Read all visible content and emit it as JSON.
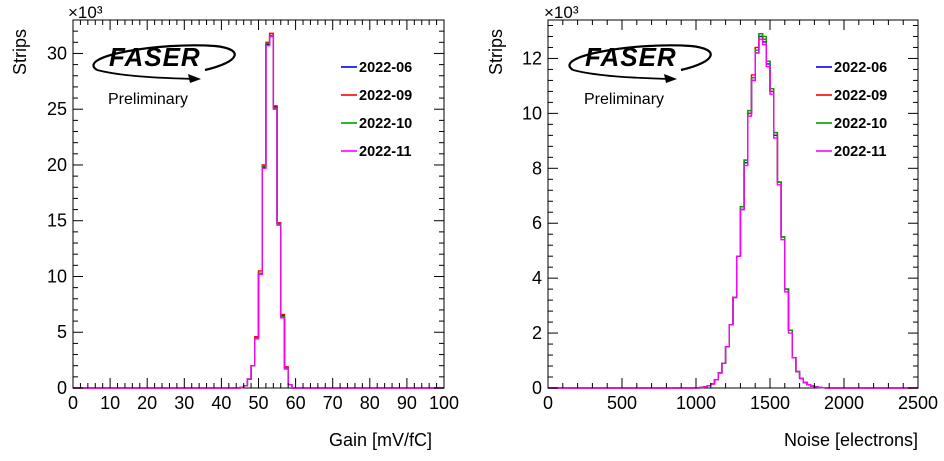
{
  "logo": {
    "text": "FASER",
    "subtitle": "Preliminary"
  },
  "chart_data": [
    {
      "type": "histogram",
      "xlabel": "Gain [mV/fC]",
      "ylabel": "Strips",
      "y_multiplier_label": "×10³",
      "xlim": [
        0,
        100
      ],
      "ylim": [
        0,
        33
      ],
      "x_ticks": [
        "0",
        "10",
        "20",
        "30",
        "40",
        "50",
        "60",
        "70",
        "80",
        "90",
        "100"
      ],
      "y_ticks": [
        "0",
        "5",
        "10",
        "15",
        "20",
        "25",
        "30"
      ],
      "legend_position": "top-right",
      "bin_width": 1,
      "bins_x": [
        44,
        45,
        46,
        47,
        48,
        49,
        50,
        51,
        52,
        53,
        54,
        55,
        56,
        57,
        58,
        59
      ],
      "series": [
        {
          "name": "2022-06",
          "color": "#0000ff",
          "values": [
            0.0,
            0.05,
            0.2,
            0.8,
            2.0,
            4.5,
            10.3,
            19.8,
            30.8,
            31.6,
            25.2,
            14.8,
            6.5,
            1.8,
            0.3,
            0.0
          ]
        },
        {
          "name": "2022-09",
          "color": "#ff0000",
          "values": [
            0.0,
            0.05,
            0.2,
            0.8,
            2.0,
            4.6,
            10.5,
            20.0,
            31.0,
            31.8,
            25.3,
            14.8,
            6.6,
            1.9,
            0.3,
            0.0
          ]
        },
        {
          "name": "2022-10",
          "color": "#00a000",
          "values": [
            0.0,
            0.05,
            0.2,
            0.8,
            2.0,
            4.5,
            10.3,
            19.9,
            30.9,
            31.6,
            25.1,
            14.7,
            6.4,
            1.8,
            0.3,
            0.0
          ]
        },
        {
          "name": "2022-11",
          "color": "#ff00ff",
          "values": [
            0.0,
            0.05,
            0.2,
            0.8,
            2.0,
            4.4,
            10.2,
            19.7,
            30.7,
            31.5,
            25.0,
            14.6,
            6.3,
            1.7,
            0.3,
            0.0
          ]
        }
      ]
    },
    {
      "type": "histogram",
      "xlabel": "Noise [electrons]",
      "ylabel": "Strips",
      "y_multiplier_label": "×10³",
      "xlim": [
        0,
        2500
      ],
      "ylim": [
        0,
        13.4
      ],
      "x_ticks": [
        "0",
        "500",
        "1000",
        "1500",
        "2000",
        "2500"
      ],
      "y_ticks": [
        "0",
        "2",
        "4",
        "6",
        "8",
        "10",
        "12"
      ],
      "legend_position": "top-right",
      "bin_width": 25,
      "bins_x": [
        1000,
        1025,
        1050,
        1075,
        1100,
        1125,
        1150,
        1175,
        1200,
        1225,
        1250,
        1275,
        1300,
        1325,
        1350,
        1375,
        1400,
        1425,
        1450,
        1475,
        1500,
        1525,
        1550,
        1575,
        1600,
        1625,
        1650,
        1675,
        1700,
        1725,
        1750,
        1775,
        1800,
        1825,
        1850,
        1875,
        1900,
        1925,
        1950,
        1975
      ],
      "series": [
        {
          "name": "2022-06",
          "color": "#0000ff",
          "values": [
            0.0,
            0.02,
            0.04,
            0.08,
            0.15,
            0.3,
            0.55,
            0.9,
            1.5,
            2.3,
            3.3,
            4.8,
            6.5,
            8.2,
            10.0,
            11.2,
            12.2,
            12.8,
            12.6,
            11.8,
            10.8,
            9.2,
            7.5,
            5.5,
            3.6,
            2.1,
            1.1,
            0.6,
            0.35,
            0.2,
            0.12,
            0.07,
            0.04,
            0.02,
            0.01,
            0.0,
            0.0,
            0.0,
            0.0,
            0.0
          ]
        },
        {
          "name": "2022-09",
          "color": "#ff0000",
          "values": [
            0.0,
            0.02,
            0.04,
            0.08,
            0.15,
            0.3,
            0.55,
            0.9,
            1.5,
            2.3,
            3.3,
            4.8,
            6.6,
            8.3,
            10.0,
            11.4,
            12.4,
            12.9,
            12.7,
            11.9,
            10.8,
            9.3,
            7.5,
            5.5,
            3.6,
            2.1,
            1.1,
            0.6,
            0.35,
            0.2,
            0.12,
            0.07,
            0.04,
            0.02,
            0.01,
            0.0,
            0.0,
            0.0,
            0.0,
            0.0
          ]
        },
        {
          "name": "2022-10",
          "color": "#00a000",
          "values": [
            0.0,
            0.02,
            0.04,
            0.08,
            0.15,
            0.3,
            0.55,
            0.9,
            1.5,
            2.3,
            3.3,
            4.8,
            6.6,
            8.3,
            10.1,
            11.3,
            12.3,
            12.9,
            12.8,
            11.9,
            10.9,
            9.3,
            7.5,
            5.5,
            3.6,
            2.1,
            1.1,
            0.6,
            0.35,
            0.2,
            0.12,
            0.07,
            0.04,
            0.02,
            0.01,
            0.0,
            0.0,
            0.0,
            0.0,
            0.0
          ]
        },
        {
          "name": "2022-11",
          "color": "#ff00ff",
          "values": [
            0.0,
            0.02,
            0.04,
            0.08,
            0.15,
            0.3,
            0.55,
            0.9,
            1.5,
            2.3,
            3.3,
            4.8,
            6.5,
            8.1,
            9.9,
            11.2,
            12.2,
            12.7,
            12.5,
            11.7,
            10.7,
            9.1,
            7.4,
            5.4,
            3.5,
            2.0,
            1.1,
            0.6,
            0.35,
            0.2,
            0.12,
            0.07,
            0.04,
            0.02,
            0.01,
            0.0,
            0.0,
            0.0,
            0.0,
            0.0
          ]
        }
      ]
    }
  ]
}
